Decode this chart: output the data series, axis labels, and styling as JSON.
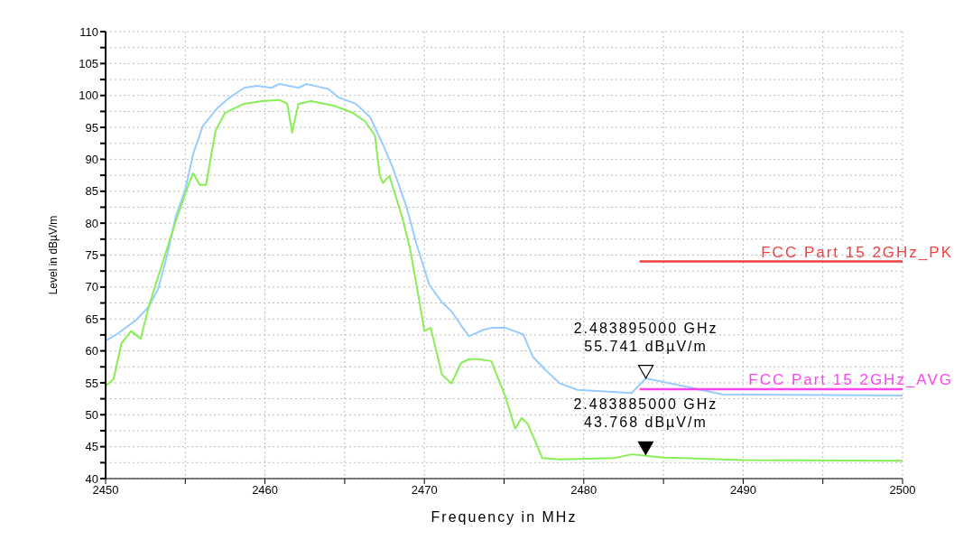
{
  "chart_data": {
    "type": "line",
    "xlabel": "Frequency in MHz",
    "ylabel": "Level in dBµV/m",
    "xlim": [
      2450,
      2500
    ],
    "ylim": [
      40,
      110
    ],
    "xticks": [
      2450,
      {
        "value": 2455,
        "label": null
      },
      2460,
      {
        "value": 2465,
        "label": null
      },
      2470,
      {
        "value": 2475,
        "label": null
      },
      2480,
      {
        "value": 2485,
        "label": null
      },
      2490,
      {
        "value": 2495,
        "label": null
      },
      2500
    ],
    "yticks": [
      40,
      {
        "value": 42.5,
        "label": null
      },
      45,
      {
        "value": 47.5,
        "label": null
      },
      50,
      {
        "value": 52.5,
        "label": null
      },
      55,
      {
        "value": 57.5,
        "label": null
      },
      60,
      {
        "value": 62.5,
        "label": null
      },
      65,
      {
        "value": 67.5,
        "label": null
      },
      70,
      {
        "value": 72.5,
        "label": null
      },
      75,
      {
        "value": 77.5,
        "label": null
      },
      80,
      {
        "value": 82.5,
        "label": null
      },
      85,
      {
        "value": 87.5,
        "label": null
      },
      90,
      {
        "value": 92.5,
        "label": null
      },
      95,
      {
        "value": 97.5,
        "label": null
      },
      100,
      {
        "value": 102.5,
        "label": null
      },
      105,
      {
        "value": 107.5,
        "label": null
      },
      110
    ],
    "grid": true,
    "legend": false,
    "marker": "none",
    "line_style": "solid",
    "series": [
      {
        "color": "#99ccff",
        "x": [
          2450,
          2450.7,
          2451.9,
          2452.7,
          2453.3,
          2453.9,
          2454.4,
          2455,
          2455.5,
          2456.1,
          2457,
          2457.8,
          2458.7,
          2459.5,
          2460.4,
          2460.9,
          2462.1,
          2462.6,
          2464,
          2464.6,
          2465.7,
          2466.6,
          2467.4,
          2468,
          2468.9,
          2469.5,
          2470.3,
          2471.1,
          2471.7,
          2472.3,
          2472.8,
          2473.7,
          2474.2,
          2475.1,
          2476.2,
          2476.8,
          2477.6,
          2478.5,
          2479.6,
          2483,
          2483.9,
          2488.7,
          2500
        ],
        "values": [
          61.6,
          62.6,
          64.8,
          66.9,
          69.7,
          75.4,
          81,
          85.3,
          90.9,
          95.2,
          98,
          99.7,
          101.2,
          101.5,
          101.2,
          101.8,
          101.2,
          101.8,
          101,
          99.7,
          98.7,
          96.6,
          92.3,
          88.8,
          82.4,
          76.8,
          70.4,
          67.6,
          66.2,
          64,
          62.3,
          63.3,
          63.6,
          63.6,
          62.6,
          59.1,
          57,
          54.9,
          53.9,
          53.4,
          55.7,
          53.2,
          53
        ]
      },
      {
        "color": "#88ee55",
        "x": [
          2450,
          2450.5,
          2451,
          2451.6,
          2452.2,
          2452.7,
          2453.6,
          2454.4,
          2455.3,
          2455.5,
          2455.9,
          2456.3,
          2456.9,
          2457.5,
          2458.7,
          2459.8,
          2460.9,
          2461.4,
          2461.7,
          2462.1,
          2462.9,
          2464.3,
          2465.5,
          2466.3,
          2466.9,
          2467.2,
          2467.4,
          2467.8,
          2468.6,
          2469.1,
          2469.7,
          2470,
          2470.4,
          2471.1,
          2471.7,
          2472.3,
          2472.8,
          2473.4,
          2474.2,
          2475.1,
          2475.7,
          2476.1,
          2476.5,
          2477.4,
          2478.5,
          2481.9,
          2483,
          2485,
          2490,
          2500
        ],
        "values": [
          54.5,
          55.6,
          61.2,
          63.1,
          61.9,
          66.9,
          74,
          80.3,
          86.7,
          87.8,
          86,
          86,
          94.5,
          97.3,
          98.7,
          99.1,
          99.3,
          98.7,
          94.2,
          98.7,
          99.1,
          98.4,
          97.3,
          95.9,
          93.7,
          87.4,
          86.3,
          87.4,
          81,
          76,
          67.6,
          63.1,
          63.6,
          56.3,
          54.9,
          58.1,
          58.7,
          58.7,
          58.4,
          52.7,
          47.8,
          49.5,
          48.5,
          43.2,
          43,
          43.2,
          43.8,
          43.3,
          42.9,
          42.8
        ]
      },
      {
        "name": "FCC Part 15 2GHz_PK",
        "color": "#f04040",
        "x": [
          2483.5,
          2500
        ],
        "values": [
          74,
          74
        ]
      },
      {
        "name": "FCC Part 15 2GHz_AVG",
        "color": "#ff44ee",
        "x": [
          2483.5,
          2500
        ],
        "values": [
          54,
          54
        ]
      }
    ],
    "annotations": [
      {
        "text": "2.483895000 GHz\n55.741 dBµV/m",
        "x": 2483.895,
        "y": 55.741
      },
      {
        "text": "2.483885000 GHz\n43.768 dBµV/m",
        "x": 2483.885,
        "y": 43.768
      }
    ]
  }
}
